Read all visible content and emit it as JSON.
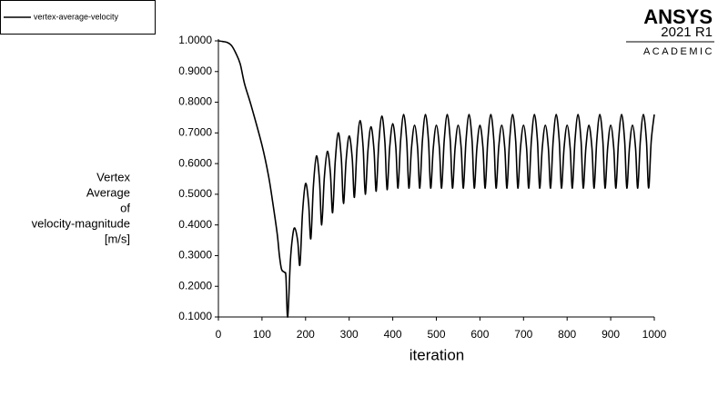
{
  "chart_data": {
    "type": "line",
    "y_label": [
      "Vertex",
      "Average",
      "of",
      "velocity-magnitude",
      "[m/s]"
    ],
    "x_label": "iteration",
    "legend": "top-left",
    "x": [
      0,
      10,
      20,
      30,
      40,
      50,
      60,
      75,
      100,
      115,
      125,
      135,
      140,
      145,
      152,
      155,
      159,
      165,
      170,
      175,
      182,
      187,
      193,
      200,
      207,
      212,
      218,
      225,
      232,
      237,
      243,
      250,
      257,
      262,
      268,
      275,
      282,
      287,
      293,
      300,
      307,
      312,
      318,
      325,
      332,
      337,
      343,
      350,
      357,
      362,
      368,
      375,
      382,
      387,
      393,
      400,
      407,
      412,
      418,
      425,
      432,
      437,
      443,
      450,
      457,
      462,
      468,
      475,
      482,
      487,
      493,
      500,
      507,
      512,
      518,
      525,
      532,
      537,
      543,
      550,
      557,
      562,
      568,
      575,
      582,
      587,
      593,
      600,
      607,
      612,
      618,
      625,
      632,
      637,
      643,
      650,
      657,
      662,
      668,
      675,
      682,
      687,
      693,
      700,
      707,
      712,
      718,
      725,
      732,
      737,
      743,
      750,
      757,
      762,
      768,
      775,
      782,
      787,
      793,
      800,
      807,
      812,
      818,
      825,
      832,
      837,
      843,
      850,
      857,
      862,
      868,
      875,
      882,
      887,
      893,
      900,
      907,
      912,
      918,
      925,
      932,
      937,
      943,
      950,
      957,
      962,
      968,
      975,
      982,
      987,
      993,
      1000
    ],
    "series": [
      {
        "name": "vertex-average-velocity",
        "color": "#000000",
        "values": [
          1.0,
          0.998,
          0.995,
          0.985,
          0.96,
          0.925,
          0.86,
          0.79,
          0.66,
          0.56,
          0.47,
          0.37,
          0.3,
          0.255,
          0.245,
          0.23,
          0.1,
          0.28,
          0.36,
          0.39,
          0.347,
          0.27,
          0.44,
          0.535,
          0.47,
          0.355,
          0.528,
          0.625,
          0.544,
          0.4,
          0.554,
          0.64,
          0.568,
          0.44,
          0.606,
          0.7,
          0.617,
          0.47,
          0.611,
          0.69,
          0.618,
          0.49,
          0.65,
          0.74,
          0.654,
          0.5,
          0.641,
          0.72,
          0.644,
          0.51,
          0.667,
          0.755,
          0.669,
          0.515,
          0.653,
          0.73,
          0.654,
          0.52,
          0.674,
          0.76,
          0.674,
          0.52,
          0.651,
          0.725,
          0.651,
          0.52,
          0.674,
          0.76,
          0.674,
          0.52,
          0.651,
          0.725,
          0.651,
          0.52,
          0.674,
          0.76,
          0.674,
          0.52,
          0.651,
          0.725,
          0.651,
          0.52,
          0.674,
          0.76,
          0.674,
          0.52,
          0.651,
          0.725,
          0.651,
          0.52,
          0.674,
          0.76,
          0.674,
          0.52,
          0.651,
          0.725,
          0.651,
          0.52,
          0.674,
          0.76,
          0.674,
          0.52,
          0.651,
          0.725,
          0.651,
          0.52,
          0.674,
          0.76,
          0.674,
          0.52,
          0.651,
          0.725,
          0.651,
          0.52,
          0.674,
          0.76,
          0.674,
          0.52,
          0.651,
          0.725,
          0.651,
          0.52,
          0.674,
          0.76,
          0.674,
          0.52,
          0.651,
          0.725,
          0.651,
          0.52,
          0.674,
          0.76,
          0.674,
          0.52,
          0.651,
          0.725,
          0.651,
          0.52,
          0.674,
          0.76,
          0.674,
          0.52,
          0.651,
          0.725,
          0.651,
          0.52,
          0.674,
          0.76,
          0.674,
          0.52,
          0.674,
          0.76
        ]
      }
    ],
    "xlim": [
      0,
      1000
    ],
    "xticks": [
      0,
      100,
      200,
      300,
      400,
      500,
      600,
      700,
      800,
      900,
      1000
    ],
    "ylim": [
      0.1,
      1.0
    ],
    "yticks": [
      {
        "value": 0.1,
        "label": "0.1000"
      },
      {
        "value": 0.2,
        "label": "0.2000"
      },
      {
        "value": 0.3,
        "label": "0.3000"
      },
      {
        "value": 0.4,
        "label": "0.4000"
      },
      {
        "value": 0.5,
        "label": "0.5000"
      },
      {
        "value": 0.6,
        "label": "0.6000"
      },
      {
        "value": 0.7,
        "label": "0.7000"
      },
      {
        "value": 0.8,
        "label": "0.8000"
      },
      {
        "value": 0.9,
        "label": "0.9000"
      },
      {
        "value": 1.0,
        "label": "1.0000"
      }
    ]
  },
  "logo": {
    "brand": "ANSYS",
    "version": "2021 R1",
    "edition": "ACADEMIC"
  }
}
